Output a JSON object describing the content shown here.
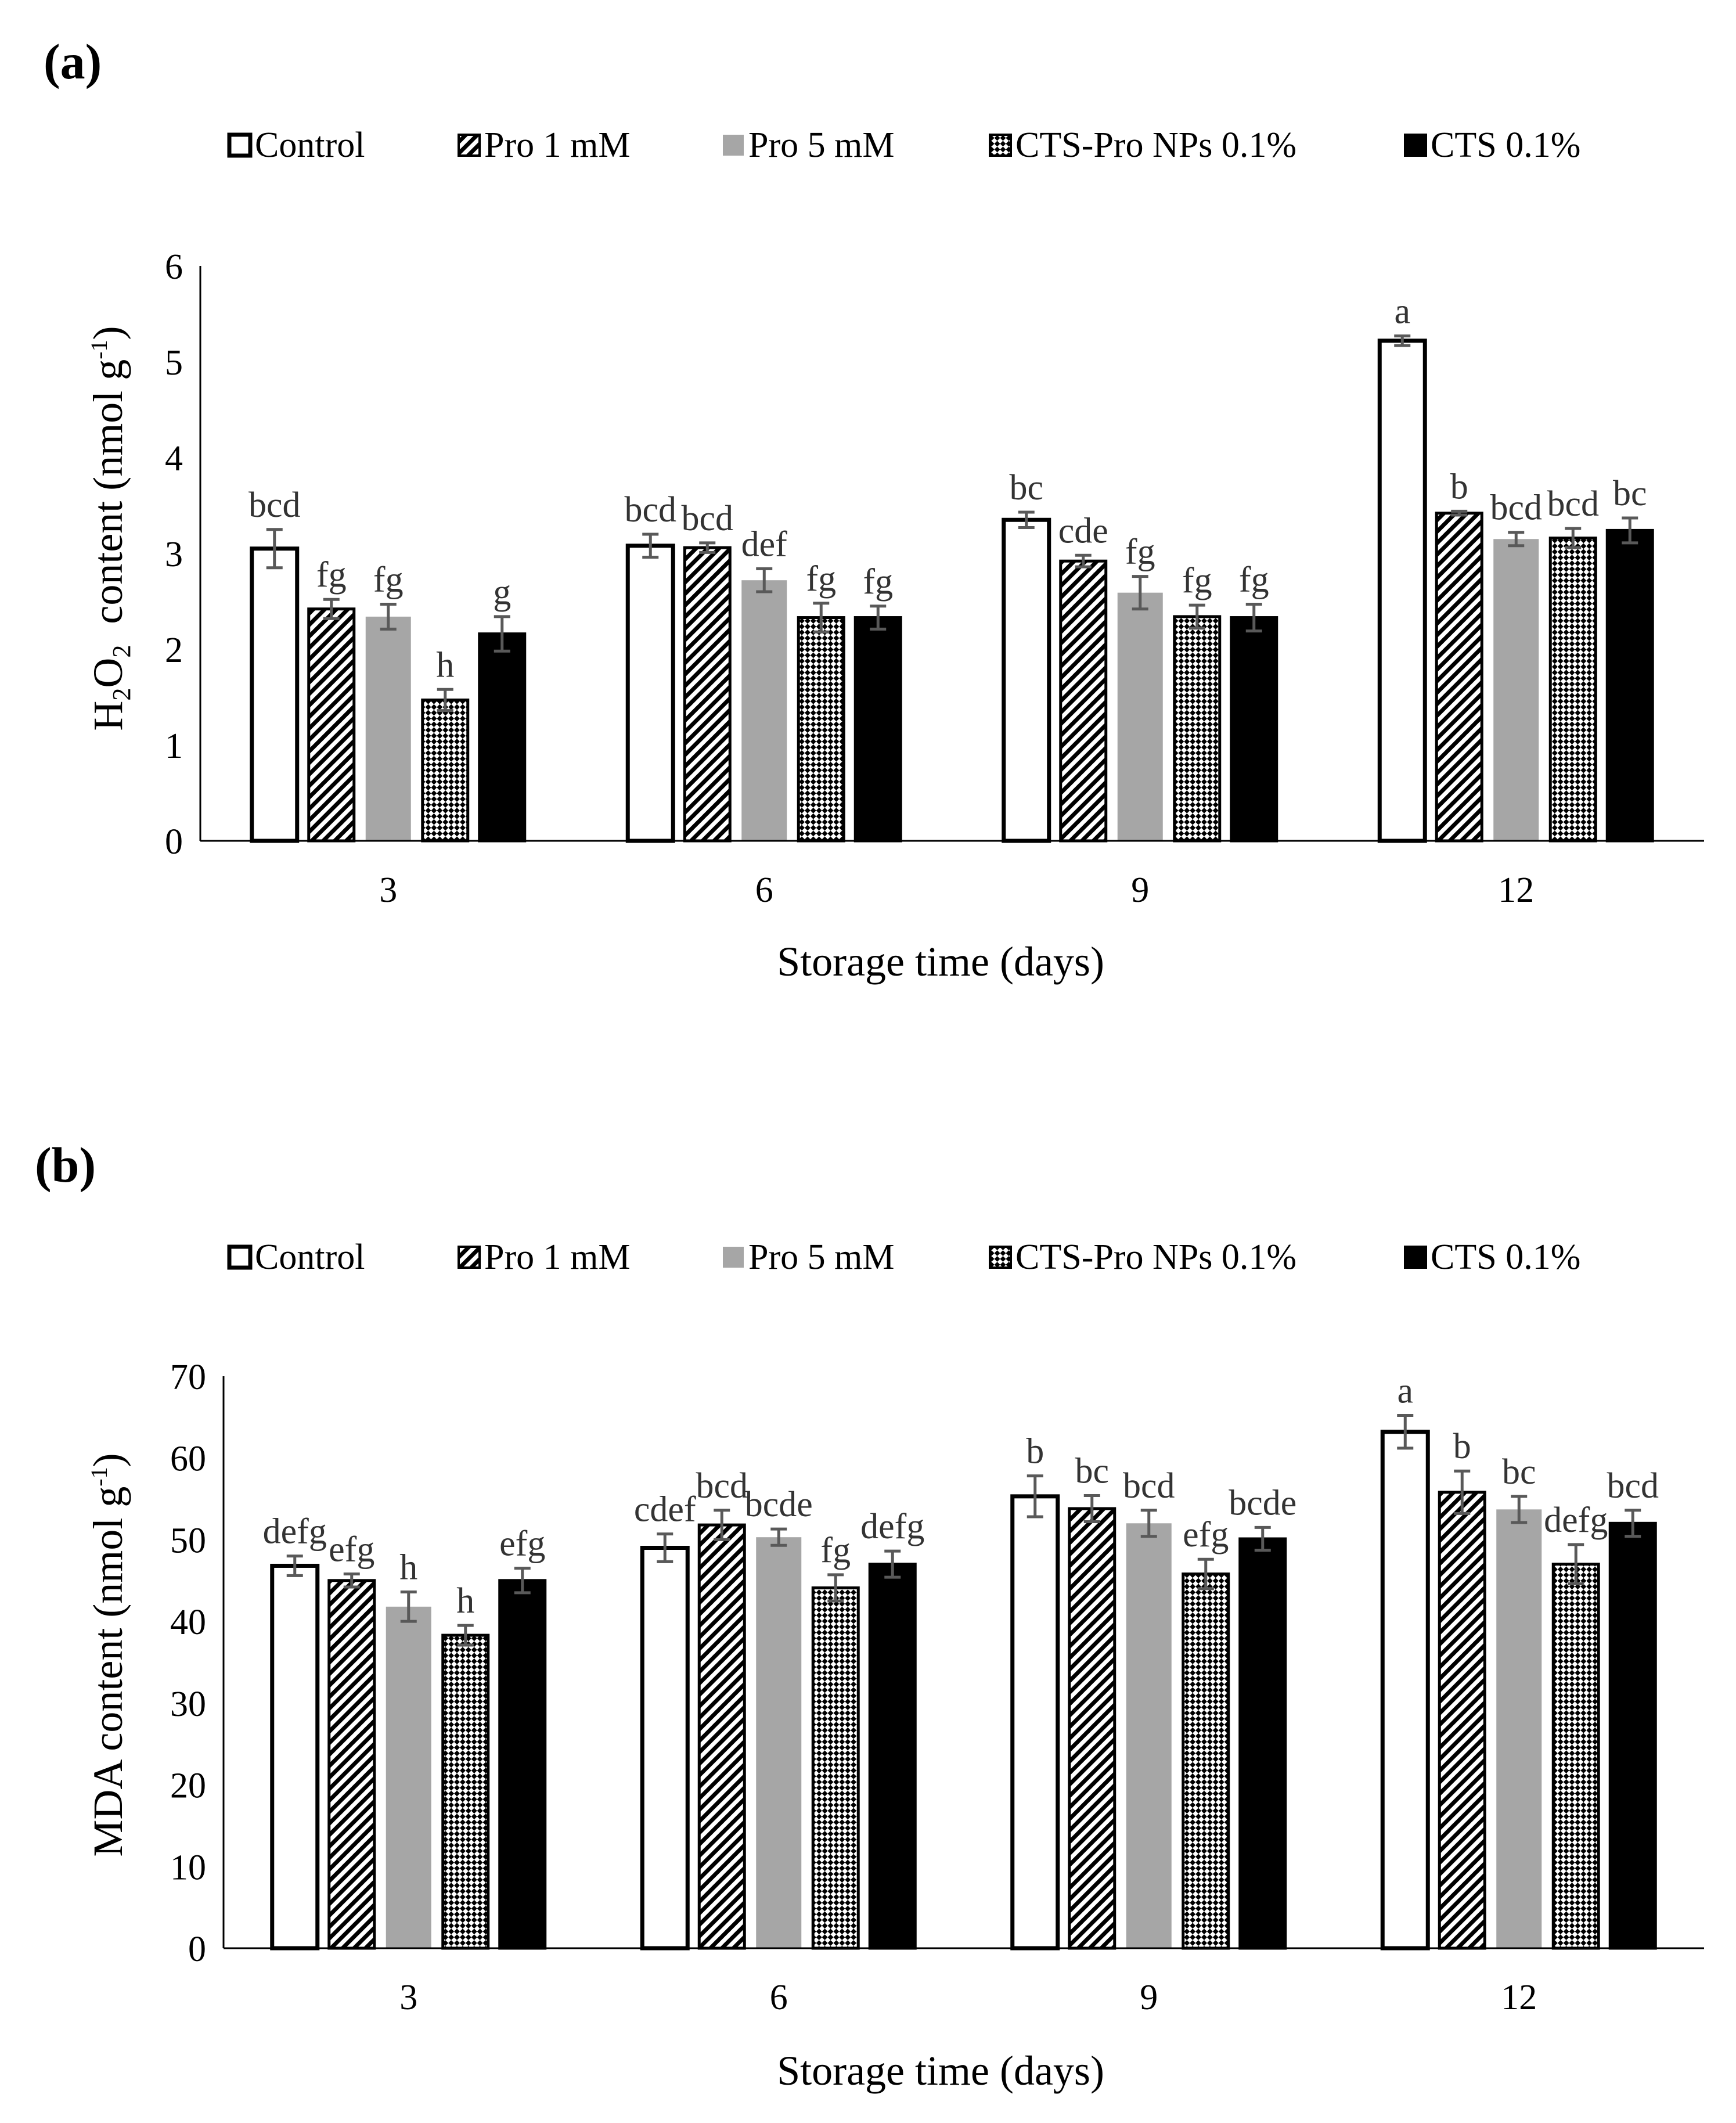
{
  "chart_data": [
    {
      "type": "bar",
      "panel_label": "(a)",
      "xlabel": "Storage time (days)",
      "ylabel": {
        "base": "H",
        "sub1": "2",
        "mid": "O",
        "sub2": "2",
        "rest": "  content (nmol g",
        "sup": "-1",
        "end": ")"
      },
      "categories": [
        "3",
        "6",
        "9",
        "12"
      ],
      "ylim": [
        0,
        6
      ],
      "yticks": [
        0,
        1,
        2,
        3,
        4,
        5,
        6
      ],
      "series": [
        {
          "name": "Control",
          "values": [
            3.05,
            3.08,
            3.35,
            5.22
          ],
          "errors": [
            0.2,
            0.12,
            0.08,
            0.05
          ],
          "letters": [
            "bcd",
            "bcd",
            "bc",
            "a"
          ]
        },
        {
          "name": "Pro 1 mM",
          "values": [
            2.42,
            3.06,
            2.92,
            3.42
          ],
          "errors": [
            0.1,
            0.05,
            0.06,
            0.02
          ],
          "letters": [
            "fg",
            "bcd",
            "cde",
            "b"
          ]
        },
        {
          "name": "Pro 5 mM",
          "values": [
            2.34,
            2.72,
            2.59,
            3.15
          ],
          "errors": [
            0.13,
            0.12,
            0.17,
            0.07
          ],
          "letters": [
            "fg",
            "def",
            "fg",
            "bcd"
          ]
        },
        {
          "name": "CTS-Pro NPs 0.1%",
          "values": [
            1.47,
            2.33,
            2.34,
            3.16
          ],
          "errors": [
            0.11,
            0.15,
            0.12,
            0.1
          ],
          "letters": [
            "h",
            "fg",
            "fg",
            "bcd"
          ]
        },
        {
          "name": "CTS 0.1%",
          "values": [
            2.16,
            2.33,
            2.33,
            3.24
          ],
          "errors": [
            0.18,
            0.12,
            0.14,
            0.13
          ],
          "letters": [
            "g",
            "fg",
            "fg",
            "bc"
          ]
        }
      ]
    },
    {
      "type": "bar",
      "panel_label": "(b)",
      "xlabel": "Storage time (days)",
      "ylabel": {
        "base": "MDA content (nmol g",
        "sup": "-1",
        "end": ")"
      },
      "categories": [
        "3",
        "6",
        "9",
        "12"
      ],
      "ylim": [
        0,
        70
      ],
      "yticks": [
        0,
        10,
        20,
        30,
        40,
        50,
        60,
        70
      ],
      "series": [
        {
          "name": "Control",
          "values": [
            46.8,
            49.0,
            55.3,
            63.2
          ],
          "errors": [
            1.2,
            1.7,
            2.5,
            2.0
          ],
          "letters": [
            "defg",
            "cdef",
            "b",
            "a"
          ]
        },
        {
          "name": "Pro 1 mM",
          "values": [
            45.0,
            51.8,
            53.8,
            55.8
          ],
          "errors": [
            0.8,
            1.8,
            1.6,
            2.6
          ],
          "letters": [
            "efg",
            "bcd",
            "bc",
            "b"
          ]
        },
        {
          "name": "Pro 5 mM",
          "values": [
            41.8,
            50.3,
            52.0,
            53.7
          ],
          "errors": [
            1.8,
            1.0,
            1.6,
            1.6
          ],
          "letters": [
            "h",
            "bcde",
            "bcd",
            "bc"
          ]
        },
        {
          "name": "CTS-Pro NPs 0.1%",
          "values": [
            38.3,
            44.1,
            45.8,
            47.0
          ],
          "errors": [
            1.2,
            1.6,
            1.8,
            2.4
          ],
          "letters": [
            "h",
            "fg",
            "efg",
            "defg"
          ]
        },
        {
          "name": "CTS 0.1%",
          "values": [
            45.0,
            47.0,
            50.1,
            52.0
          ],
          "errors": [
            1.5,
            1.6,
            1.4,
            1.6
          ],
          "letters": [
            "efg",
            "defg",
            "bcde",
            "bcd"
          ]
        }
      ]
    }
  ]
}
